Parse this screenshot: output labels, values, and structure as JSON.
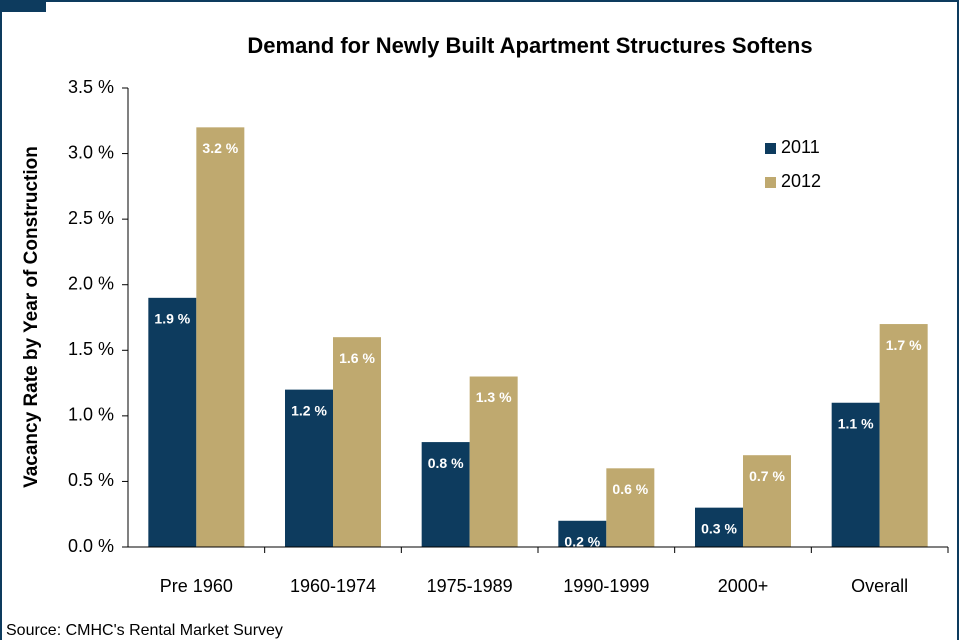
{
  "chart_data": {
    "type": "bar",
    "title": "Demand for Newly Built Apartment Structures Softens",
    "ylabel": "Vacancy Rate by Year of Construction",
    "source": "Source: CMHC's Rental Market Survey",
    "categories": [
      "Pre 1960",
      "1960-1974",
      "1975-1989",
      "1990-1999",
      "2000+",
      "Overall"
    ],
    "series": [
      {
        "name": "2011",
        "color": "#0d3b5e",
        "values": [
          1.9,
          1.2,
          0.8,
          0.2,
          0.3,
          1.1
        ],
        "value_labels": [
          "1.9 %",
          "1.2 %",
          "0.8 %",
          "0.2 %",
          "0.3 %",
          "1.1 %"
        ]
      },
      {
        "name": "2012",
        "color": "#bfa96f",
        "values": [
          3.2,
          1.6,
          1.3,
          0.6,
          0.7,
          1.7
        ],
        "value_labels": [
          "3.2 %",
          "1.6 %",
          "1.3 %",
          "0.6 %",
          "0.7 %",
          "1.7 %"
        ]
      }
    ],
    "ylim": [
      0,
      3.5
    ],
    "yticks": [
      {
        "value": 0,
        "label": "0.0 %"
      },
      {
        "value": 0.5,
        "label": "0.5 %"
      },
      {
        "value": 1,
        "label": "1.0 %"
      },
      {
        "value": 1.5,
        "label": "1.5 %"
      },
      {
        "value": 2,
        "label": "2.0 %"
      },
      {
        "value": 2.5,
        "label": "2.5 %"
      },
      {
        "value": 3,
        "label": "3.0 %"
      },
      {
        "value": 3.5,
        "label": "3.5 %"
      }
    ],
    "legend": "upper right"
  }
}
